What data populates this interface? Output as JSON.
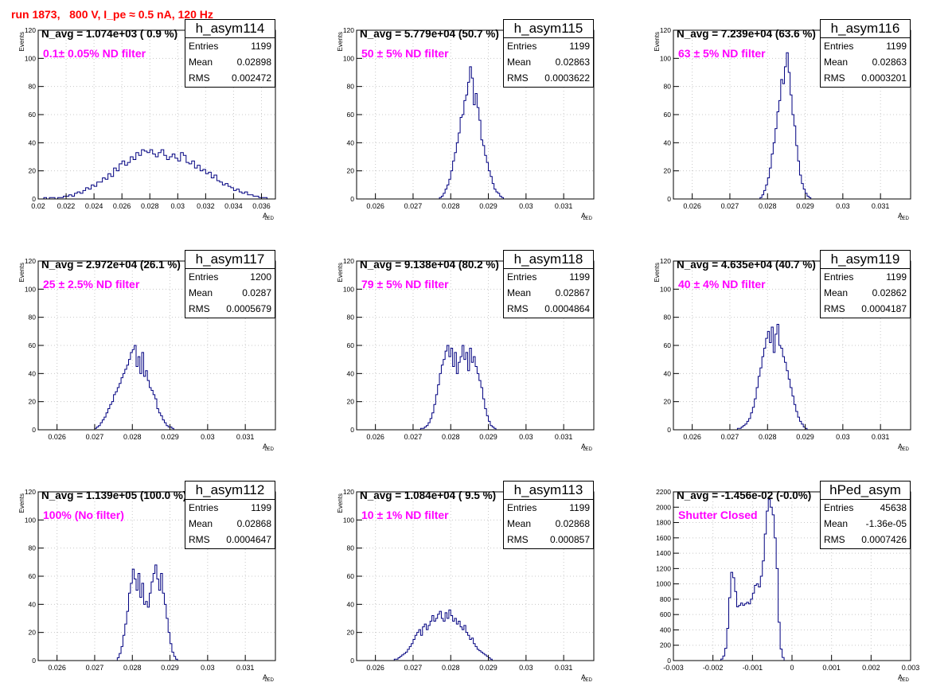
{
  "page": {
    "title": "run 1873,   800 V, I_pe ≈ 0.5 nA, 120 Hz",
    "title_color": "#ff0000",
    "label_color": "#ff00ff",
    "line_color": "#000080"
  },
  "chart_data": [
    {
      "type": "histogram",
      "name": "h_asym114",
      "navg": "N_avg = 1.074e+03 ( 0.9 %)",
      "filter": "0.1± 0.05% ND filter",
      "stats": {
        "entries": "1199",
        "mean": "0.02898",
        "rms": "0.002472"
      },
      "xlabel": "A",
      "xlabel_sub": "LED",
      "ylabel": "Events",
      "xlim": [
        0.02,
        0.037
      ],
      "ylim": [
        0,
        120
      ],
      "xticks": [
        {
          "v": 0.02,
          "label": "0.02"
        },
        {
          "v": 0.022,
          "label": "0.022"
        },
        {
          "v": 0.024,
          "label": "0.024"
        },
        {
          "v": 0.026,
          "label": "0.026"
        },
        {
          "v": 0.028,
          "label": "0.028"
        },
        {
          "v": 0.03,
          "label": "0.03"
        },
        {
          "v": 0.032,
          "label": "0.032"
        },
        {
          "v": 0.034,
          "label": "0.034"
        },
        {
          "v": 0.036,
          "label": "0.036"
        }
      ],
      "yticks": [
        0,
        20,
        40,
        60,
        80,
        100,
        120
      ],
      "bin_start": 0.0204,
      "bin_width": 0.0002,
      "counts": [
        1,
        0,
        1,
        1,
        0,
        1,
        1,
        2,
        2,
        3,
        2,
        4,
        5,
        4,
        6,
        8,
        7,
        10,
        9,
        12,
        12,
        15,
        14,
        18,
        16,
        22,
        20,
        25,
        27,
        24,
        26,
        30,
        28,
        33,
        31,
        35,
        34,
        33,
        35,
        32,
        30,
        33,
        35,
        31,
        28,
        30,
        32,
        29,
        27,
        33,
        31,
        26,
        25,
        27,
        22,
        24,
        20,
        21,
        18,
        19,
        15,
        17,
        13,
        12,
        10,
        11,
        9,
        8,
        6,
        7,
        5,
        4,
        5,
        3,
        3,
        2,
        2,
        1,
        1,
        1
      ]
    },
    {
      "type": "histogram",
      "name": "h_asym115",
      "navg": "N_avg = 5.779e+04 (50.7 %)",
      "filter": "50 ± 5% ND filter",
      "stats": {
        "entries": "1199",
        "mean": "0.02863",
        "rms": "0.0003622"
      },
      "xlabel": "A",
      "xlabel_sub": "LED",
      "ylabel": "Events",
      "xlim": [
        0.0255,
        0.0318
      ],
      "ylim": [
        0,
        120
      ],
      "xticks": [
        {
          "v": 0.026,
          "label": "0.026"
        },
        {
          "v": 0.027,
          "label": "0.027"
        },
        {
          "v": 0.028,
          "label": "0.028"
        },
        {
          "v": 0.029,
          "label": "0.029"
        },
        {
          "v": 0.03,
          "label": "0.03"
        },
        {
          "v": 0.031,
          "label": "0.031"
        }
      ],
      "yticks": [
        0,
        20,
        40,
        60,
        80,
        100,
        120
      ],
      "bin_start": 0.0277,
      "bin_width": 5e-05,
      "counts": [
        1,
        2,
        4,
        7,
        10,
        14,
        20,
        27,
        33,
        40,
        47,
        58,
        60,
        70,
        74,
        83,
        94,
        86,
        67,
        75,
        65,
        56,
        42,
        38,
        31,
        26,
        20,
        16,
        11,
        7,
        5,
        4,
        2,
        1
      ]
    },
    {
      "type": "histogram",
      "name": "h_asym116",
      "navg": "N_avg = 7.239e+04 (63.6 %)",
      "filter": "63 ± 5% ND filter",
      "stats": {
        "entries": "1199",
        "mean": "0.02863",
        "rms": "0.0003201"
      },
      "xlabel": "A",
      "xlabel_sub": "LED",
      "ylabel": "Events",
      "xlim": [
        0.0255,
        0.0318
      ],
      "ylim": [
        0,
        120
      ],
      "xticks": [
        {
          "v": 0.026,
          "label": "0.026"
        },
        {
          "v": 0.027,
          "label": "0.027"
        },
        {
          "v": 0.028,
          "label": "0.028"
        },
        {
          "v": 0.029,
          "label": "0.029"
        },
        {
          "v": 0.03,
          "label": "0.03"
        },
        {
          "v": 0.031,
          "label": "0.031"
        }
      ],
      "yticks": [
        0,
        20,
        40,
        60,
        80,
        100,
        120
      ],
      "bin_start": 0.0278,
      "bin_width": 5e-05,
      "counts": [
        1,
        3,
        6,
        10,
        15,
        22,
        32,
        40,
        50,
        62,
        70,
        85,
        82,
        94,
        104,
        90,
        74,
        60,
        52,
        38,
        27,
        17,
        11,
        7,
        4,
        2,
        1
      ]
    },
    {
      "type": "histogram",
      "name": "h_asym117",
      "navg": "N_avg = 2.972e+04 (26.1 %)",
      "filter": "25 ± 2.5% ND filter",
      "stats": {
        "entries": "1200",
        "mean": "0.0287",
        "rms": "0.0005679"
      },
      "xlabel": "A",
      "xlabel_sub": "LED",
      "ylabel": "Events",
      "xlim": [
        0.0255,
        0.0318
      ],
      "ylim": [
        0,
        120
      ],
      "xticks": [
        {
          "v": 0.026,
          "label": "0.026"
        },
        {
          "v": 0.027,
          "label": "0.027"
        },
        {
          "v": 0.028,
          "label": "0.028"
        },
        {
          "v": 0.029,
          "label": "0.029"
        },
        {
          "v": 0.03,
          "label": "0.03"
        },
        {
          "v": 0.031,
          "label": "0.031"
        }
      ],
      "yticks": [
        0,
        20,
        40,
        60,
        80,
        100,
        120
      ],
      "bin_start": 0.027,
      "bin_width": 5e-05,
      "counts": [
        1,
        2,
        3,
        5,
        7,
        9,
        12,
        15,
        18,
        20,
        25,
        27,
        30,
        33,
        37,
        40,
        43,
        46,
        50,
        55,
        57,
        60,
        45,
        52,
        40,
        55,
        38,
        42,
        35,
        30,
        28,
        25,
        22,
        15,
        12,
        10,
        7,
        5,
        3,
        2,
        2,
        1
      ]
    },
    {
      "type": "histogram",
      "name": "h_asym118",
      "navg": "N_avg = 9.138e+04 (80.2 %)",
      "filter": "79 ± 5% ND filter",
      "stats": {
        "entries": "1199",
        "mean": "0.02867",
        "rms": "0.0004864"
      },
      "xlabel": "A",
      "xlabel_sub": "LED",
      "ylabel": "Events",
      "xlim": [
        0.0255,
        0.0318
      ],
      "ylim": [
        0,
        120
      ],
      "xticks": [
        {
          "v": 0.026,
          "label": "0.026"
        },
        {
          "v": 0.027,
          "label": "0.027"
        },
        {
          "v": 0.028,
          "label": "0.028"
        },
        {
          "v": 0.029,
          "label": "0.029"
        },
        {
          "v": 0.03,
          "label": "0.03"
        },
        {
          "v": 0.031,
          "label": "0.031"
        }
      ],
      "yticks": [
        0,
        20,
        40,
        60,
        80,
        100,
        120
      ],
      "bin_start": 0.0272,
      "bin_width": 5e-05,
      "counts": [
        1,
        1,
        2,
        3,
        5,
        8,
        12,
        18,
        25,
        32,
        40,
        46,
        50,
        56,
        60,
        52,
        58,
        45,
        55,
        40,
        48,
        52,
        60,
        50,
        55,
        42,
        58,
        48,
        52,
        45,
        40,
        35,
        30,
        22,
        15,
        10,
        6,
        3,
        2,
        1
      ]
    },
    {
      "type": "histogram",
      "name": "h_asym119",
      "navg": "N_avg = 4.635e+04 (40.7 %)",
      "filter": "40 ± 4% ND filter",
      "stats": {
        "entries": "1199",
        "mean": "0.02862",
        "rms": "0.0004187"
      },
      "xlabel": "A",
      "xlabel_sub": "LED",
      "ylabel": "Events",
      "xlim": [
        0.0255,
        0.0318
      ],
      "ylim": [
        0,
        120
      ],
      "xticks": [
        {
          "v": 0.026,
          "label": "0.026"
        },
        {
          "v": 0.027,
          "label": "0.027"
        },
        {
          "v": 0.028,
          "label": "0.028"
        },
        {
          "v": 0.029,
          "label": "0.029"
        },
        {
          "v": 0.03,
          "label": "0.03"
        },
        {
          "v": 0.031,
          "label": "0.031"
        }
      ],
      "yticks": [
        0,
        20,
        40,
        60,
        80,
        100,
        120
      ],
      "bin_start": 0.0272,
      "bin_width": 5e-05,
      "counts": [
        1,
        1,
        2,
        3,
        4,
        6,
        8,
        12,
        16,
        22,
        30,
        38,
        44,
        52,
        58,
        65,
        70,
        62,
        73,
        55,
        68,
        75,
        60,
        58,
        52,
        48,
        42,
        36,
        30,
        24,
        18,
        13,
        9,
        6,
        4,
        2,
        1
      ]
    },
    {
      "type": "histogram",
      "name": "h_asym112",
      "navg": "N_avg = 1.139e+05 (100.0 %)",
      "filter": "100% (No filter)",
      "stats": {
        "entries": "1199",
        "mean": "0.02868",
        "rms": "0.0004647"
      },
      "xlabel": "A",
      "xlabel_sub": "LED",
      "ylabel": "Events",
      "xlim": [
        0.0255,
        0.0318
      ],
      "ylim": [
        0,
        120
      ],
      "xticks": [
        {
          "v": 0.026,
          "label": "0.026"
        },
        {
          "v": 0.027,
          "label": "0.027"
        },
        {
          "v": 0.028,
          "label": "0.028"
        },
        {
          "v": 0.029,
          "label": "0.029"
        },
        {
          "v": 0.03,
          "label": "0.03"
        },
        {
          "v": 0.031,
          "label": "0.031"
        }
      ],
      "yticks": [
        0,
        20,
        40,
        60,
        80,
        100,
        120
      ],
      "bin_start": 0.0276,
      "bin_width": 5e-05,
      "counts": [
        2,
        5,
        10,
        18,
        26,
        35,
        48,
        55,
        65,
        58,
        50,
        62,
        45,
        55,
        40,
        42,
        38,
        48,
        56,
        62,
        68,
        58,
        50,
        62,
        48,
        40,
        30,
        20,
        12,
        6,
        3,
        1
      ]
    },
    {
      "type": "histogram",
      "name": "h_asym113",
      "navg": "N_avg = 1.084e+04 ( 9.5 %)",
      "filter": "10 ± 1% ND filter",
      "stats": {
        "entries": "1199",
        "mean": "0.02868",
        "rms": "0.000857"
      },
      "xlabel": "A",
      "xlabel_sub": "LED",
      "ylabel": "Events",
      "xlim": [
        0.0255,
        0.0318
      ],
      "ylim": [
        0,
        120
      ],
      "xticks": [
        {
          "v": 0.026,
          "label": "0.026"
        },
        {
          "v": 0.027,
          "label": "0.027"
        },
        {
          "v": 0.028,
          "label": "0.028"
        },
        {
          "v": 0.029,
          "label": "0.029"
        },
        {
          "v": 0.03,
          "label": "0.03"
        },
        {
          "v": 0.031,
          "label": "0.031"
        }
      ],
      "yticks": [
        0,
        20,
        40,
        60,
        80,
        100,
        120
      ],
      "bin_start": 0.0265,
      "bin_width": 5e-05,
      "counts": [
        1,
        1,
        2,
        3,
        4,
        5,
        6,
        8,
        10,
        12,
        15,
        18,
        20,
        22,
        18,
        24,
        26,
        22,
        25,
        28,
        32,
        28,
        30,
        33,
        35,
        30,
        28,
        34,
        30,
        36,
        32,
        28,
        30,
        26,
        28,
        24,
        22,
        25,
        20,
        18,
        15,
        16,
        12,
        10,
        8,
        7,
        6,
        5,
        4,
        3,
        2,
        1
      ]
    },
    {
      "type": "histogram",
      "name": "hPed_asym",
      "navg": "N_avg = -1.456e-02 (-0.0%)",
      "filter": "Shutter Closed",
      "stats": {
        "entries": "45638",
        "mean": "-1.36e-05",
        "rms": "0.0007426"
      },
      "xlabel": "A",
      "xlabel_sub": "LED",
      "ylabel": "",
      "xlim": [
        -0.003,
        0.003
      ],
      "ylim": [
        0,
        2200
      ],
      "xticks": [
        {
          "v": -0.003,
          "label": "-0.003"
        },
        {
          "v": -0.002,
          "label": "-0.002"
        },
        {
          "v": -0.001,
          "label": "-0.001"
        },
        {
          "v": 0,
          "label": "0"
        },
        {
          "v": 0.001,
          "label": "0.001"
        },
        {
          "v": 0.002,
          "label": "0.002"
        },
        {
          "v": 0.003,
          "label": "0.003"
        }
      ],
      "yticks": [
        0,
        200,
        400,
        600,
        800,
        1000,
        1200,
        1400,
        1600,
        1800,
        2000,
        2200
      ],
      "bin_start": -0.0018,
      "bin_width": 5e-05,
      "counts": [
        20,
        60,
        160,
        420,
        820,
        1150,
        1080,
        900,
        700,
        720,
        750,
        720,
        740,
        760,
        740,
        800,
        880,
        980,
        1000,
        960,
        1100,
        1300,
        1650,
        1950,
        2100,
        2000,
        1900,
        1600,
        1200,
        500,
        150,
        40
      ]
    }
  ]
}
